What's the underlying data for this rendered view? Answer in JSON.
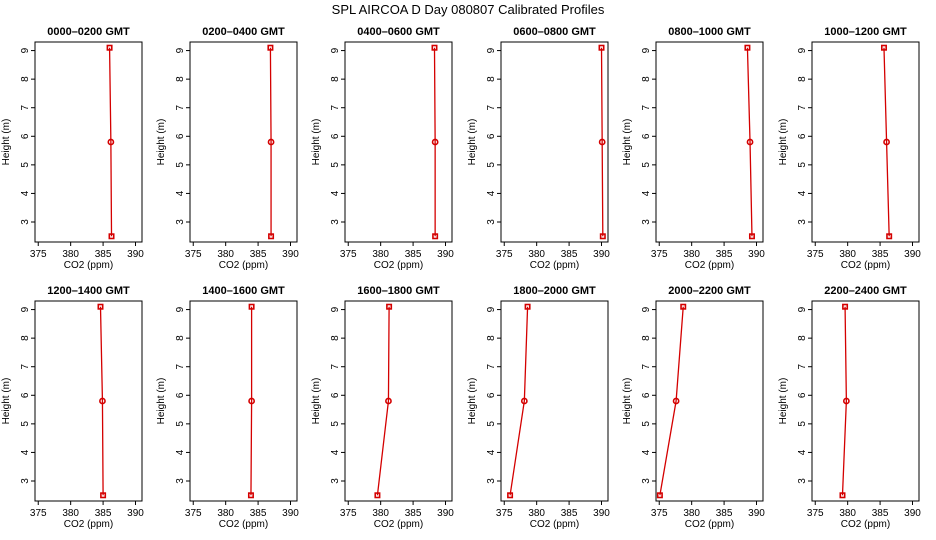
{
  "title": "SPL AIRCOA D  Day 080807  Calibrated Profiles",
  "colors": {
    "series": "#d40000",
    "axis": "#000000"
  },
  "chart_data": {
    "type": "line",
    "xlabel": "CO2 (ppm)",
    "ylabel": "Height (m)",
    "xlim": [
      374.5,
      391
    ],
    "ylim": [
      2.3,
      9.3
    ],
    "xticks": [
      375,
      380,
      385,
      390
    ],
    "yticks": [
      3,
      4,
      5,
      6,
      7,
      8,
      9
    ],
    "grid": false,
    "heights": [
      2.5,
      5.8,
      9.1
    ],
    "panels": [
      {
        "title": "0000–0200 GMT",
        "values": [
          386.3,
          386.2,
          386.0
        ]
      },
      {
        "title": "0200–0400 GMT",
        "values": [
          387.0,
          387.0,
          386.9
        ]
      },
      {
        "title": "0400–0600 GMT",
        "values": [
          388.4,
          388.4,
          388.3
        ]
      },
      {
        "title": "0600–0800 GMT",
        "values": [
          390.2,
          390.1,
          390.0
        ]
      },
      {
        "title": "0800–1000 GMT",
        "values": [
          389.3,
          389.0,
          388.6
        ]
      },
      {
        "title": "1000–1200 GMT",
        "values": [
          386.4,
          386.0,
          385.6
        ]
      },
      {
        "title": "1200–1400 GMT",
        "values": [
          385.0,
          384.9,
          384.6
        ]
      },
      {
        "title": "1400–1600 GMT",
        "values": [
          383.9,
          384.0,
          384.0
        ]
      },
      {
        "title": "1600–1800 GMT",
        "values": [
          379.5,
          381.2,
          381.3
        ]
      },
      {
        "title": "1800–2000 GMT",
        "values": [
          375.9,
          378.1,
          378.6
        ]
      },
      {
        "title": "2000–2200 GMT",
        "values": [
          375.1,
          377.6,
          378.7
        ]
      },
      {
        "title": "2200–2400 GMT",
        "values": [
          379.2,
          379.8,
          379.6
        ]
      }
    ]
  }
}
